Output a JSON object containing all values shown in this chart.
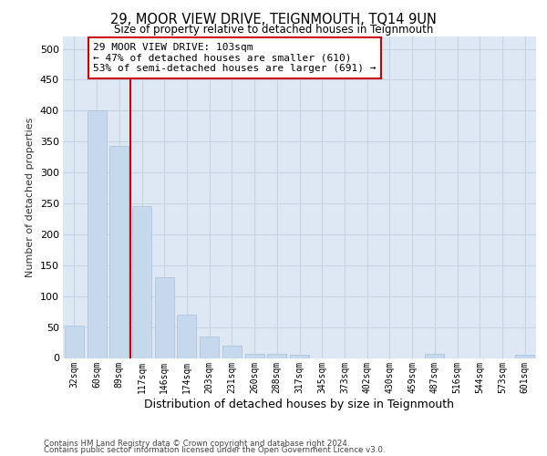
{
  "title": "29, MOOR VIEW DRIVE, TEIGNMOUTH, TQ14 9UN",
  "subtitle": "Size of property relative to detached houses in Teignmouth",
  "xlabel": "Distribution of detached houses by size in Teignmouth",
  "ylabel": "Number of detached properties",
  "categories": [
    "32sqm",
    "60sqm",
    "89sqm",
    "117sqm",
    "146sqm",
    "174sqm",
    "203sqm",
    "231sqm",
    "260sqm",
    "288sqm",
    "317sqm",
    "345sqm",
    "373sqm",
    "402sqm",
    "430sqm",
    "459sqm",
    "487sqm",
    "516sqm",
    "544sqm",
    "573sqm",
    "601sqm"
  ],
  "values": [
    52,
    401,
    343,
    245,
    130,
    70,
    35,
    20,
    7,
    7,
    5,
    0,
    0,
    0,
    0,
    0,
    7,
    0,
    0,
    0,
    5
  ],
  "bar_color": "#c5d8ec",
  "bar_edge_color": "#a8c0d8",
  "grid_color": "#c8d4e4",
  "plot_bg_color": "#dde8f4",
  "vline_color": "#cc0000",
  "vline_x": 2.5,
  "annotation_line1": "29 MOOR VIEW DRIVE: 103sqm",
  "annotation_line2": "← 47% of detached houses are smaller (610)",
  "annotation_line3": "53% of semi-detached houses are larger (691) →",
  "annotation_box_edgecolor": "#cc0000",
  "ylim": [
    0,
    520
  ],
  "yticks": [
    0,
    50,
    100,
    150,
    200,
    250,
    300,
    350,
    400,
    450,
    500
  ],
  "footer_line1": "Contains HM Land Registry data © Crown copyright and database right 2024.",
  "footer_line2": "Contains public sector information licensed under the Open Government Licence v3.0."
}
